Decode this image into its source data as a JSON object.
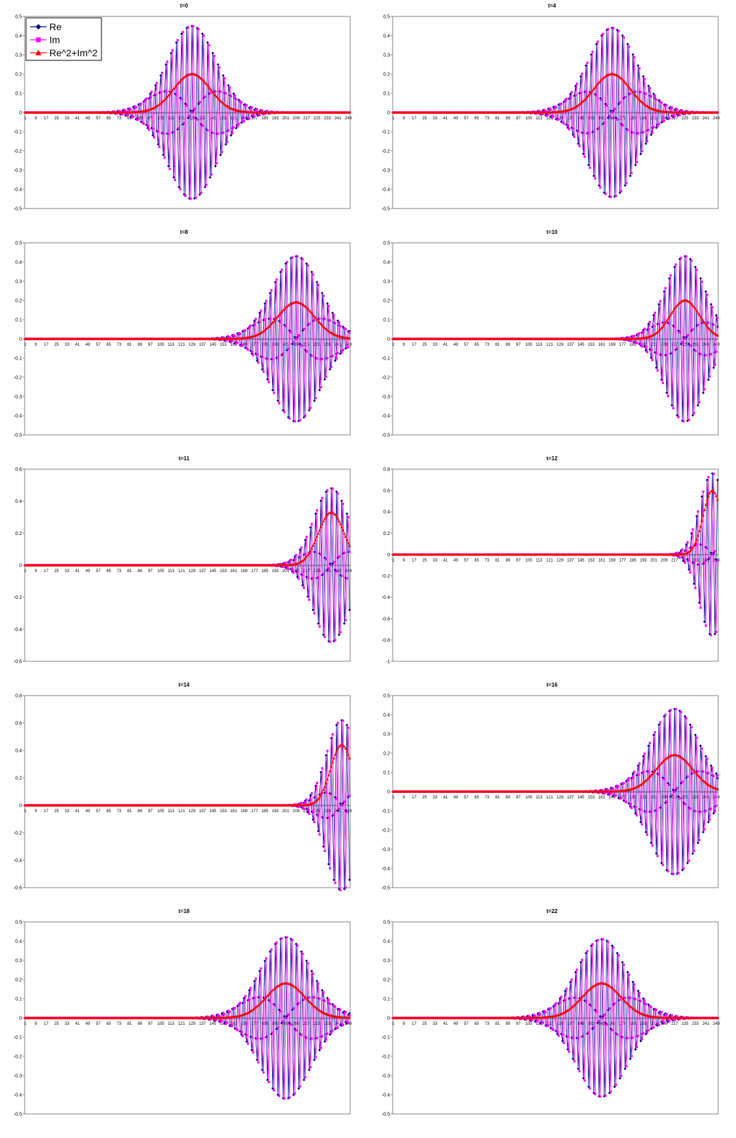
{
  "legend": {
    "placement": "top-left of first panel",
    "entries": [
      {
        "label": "Re",
        "color": "#000080",
        "marker": "diamond"
      },
      {
        "label": "Im",
        "color": "#FF00FF",
        "marker": "square"
      },
      {
        "label": "Re^2+Im^2",
        "color": "#FF0000",
        "marker": "triangle"
      }
    ]
  },
  "chart_data": [
    {
      "type": "line",
      "title": "t=0",
      "center": 129,
      "width": 20,
      "k": 1.55,
      "ylim": [
        -0.5,
        0.5
      ],
      "yticks": [
        -0.5,
        -0.4,
        -0.3,
        -0.2,
        -0.1,
        0,
        0.1,
        0.2,
        0.3,
        0.4,
        0.5
      ],
      "peak_density": 0.2,
      "peak_amplitude": 0.45
    },
    {
      "type": "line",
      "title": "t=4",
      "center": 169,
      "width": 20,
      "k": 1.55,
      "ylim": [
        -0.5,
        0.5
      ],
      "yticks": [
        -0.5,
        -0.4,
        -0.3,
        -0.2,
        -0.1,
        0,
        0.1,
        0.2,
        0.3,
        0.4,
        0.5
      ],
      "peak_density": 0.2,
      "peak_amplitude": 0.44
    },
    {
      "type": "line",
      "title": "t=8",
      "center": 209,
      "width": 20,
      "k": 1.55,
      "ylim": [
        -0.5,
        0.5
      ],
      "yticks": [
        -0.5,
        -0.4,
        -0.3,
        -0.2,
        -0.1,
        0,
        0.1,
        0.2,
        0.3,
        0.4,
        0.5
      ],
      "peak_density": 0.19,
      "peak_amplitude": 0.43
    },
    {
      "type": "line",
      "title": "t=10",
      "center": 225,
      "width": 16,
      "k": 1.55,
      "ylim": [
        -0.5,
        0.5
      ],
      "yticks": [
        -0.5,
        -0.4,
        -0.3,
        -0.2,
        -0.1,
        0,
        0.1,
        0.2,
        0.3,
        0.4,
        0.5
      ],
      "peak_density": 0.2,
      "peak_amplitude": 0.43
    },
    {
      "type": "line",
      "title": "t=11",
      "center": 236,
      "width": 14,
      "k": 1.55,
      "ylim": [
        -0.6,
        0.6
      ],
      "yticks": [
        -0.6,
        -0.4,
        -0.2,
        0,
        0.2,
        0.4,
        0.6
      ],
      "peak_density": 0.33,
      "peak_amplitude": 0.48
    },
    {
      "type": "line",
      "title": "t=12",
      "center": 246,
      "width": 10,
      "k": 1.55,
      "ylim": [
        -1,
        0.8
      ],
      "yticks": [
        -1,
        -0.8,
        -0.6,
        -0.4,
        -0.2,
        0,
        0.2,
        0.4,
        0.6,
        0.8
      ],
      "peak_density": 0.6,
      "peak_amplitude": 0.76
    },
    {
      "type": "line",
      "title": "t=14",
      "center": 244,
      "width": 12,
      "k": 1.55,
      "ylim": [
        -0.6,
        0.8
      ],
      "yticks": [
        -0.6,
        -0.4,
        -0.2,
        0,
        0.2,
        0.4,
        0.6,
        0.8
      ],
      "peak_density": 0.44,
      "peak_amplitude": 0.62
    },
    {
      "type": "line",
      "title": "t=16",
      "center": 217,
      "width": 20,
      "k": 1.55,
      "ylim": [
        -0.5,
        0.5
      ],
      "yticks": [
        -0.5,
        -0.4,
        -0.3,
        -0.2,
        -0.1,
        0,
        0.1,
        0.2,
        0.3,
        0.4,
        0.5
      ],
      "peak_density": 0.19,
      "peak_amplitude": 0.43
    },
    {
      "type": "line",
      "title": "t=18",
      "center": 201,
      "width": 21,
      "k": 1.55,
      "ylim": [
        -0.5,
        0.5
      ],
      "yticks": [
        -0.5,
        -0.4,
        -0.3,
        -0.2,
        -0.1,
        0,
        0.1,
        0.2,
        0.3,
        0.4,
        0.5
      ],
      "peak_density": 0.18,
      "peak_amplitude": 0.42
    },
    {
      "type": "line",
      "title": "t=22",
      "center": 161,
      "width": 21,
      "k": 1.55,
      "ylim": [
        -0.5,
        0.5
      ],
      "yticks": [
        -0.5,
        -0.4,
        -0.3,
        -0.2,
        -0.1,
        0,
        0.1,
        0.2,
        0.3,
        0.4,
        0.5
      ],
      "peak_density": 0.18,
      "peak_amplitude": 0.41
    }
  ],
  "x_axis": {
    "points": 250,
    "tick_labels": [
      "1",
      "9",
      "17",
      "25",
      "33",
      "41",
      "49",
      "57",
      "65",
      "73",
      "81",
      "89",
      "97",
      "105",
      "113",
      "121",
      "129",
      "137",
      "145",
      "153",
      "161",
      "169",
      "177",
      "185",
      "193",
      "201",
      "209",
      "217",
      "225",
      "233",
      "241",
      "249"
    ]
  },
  "colors": {
    "re": "#000080",
    "im": "#FF00FF",
    "density": "#FF0000",
    "axis": "#808080",
    "frame": "#000000"
  }
}
